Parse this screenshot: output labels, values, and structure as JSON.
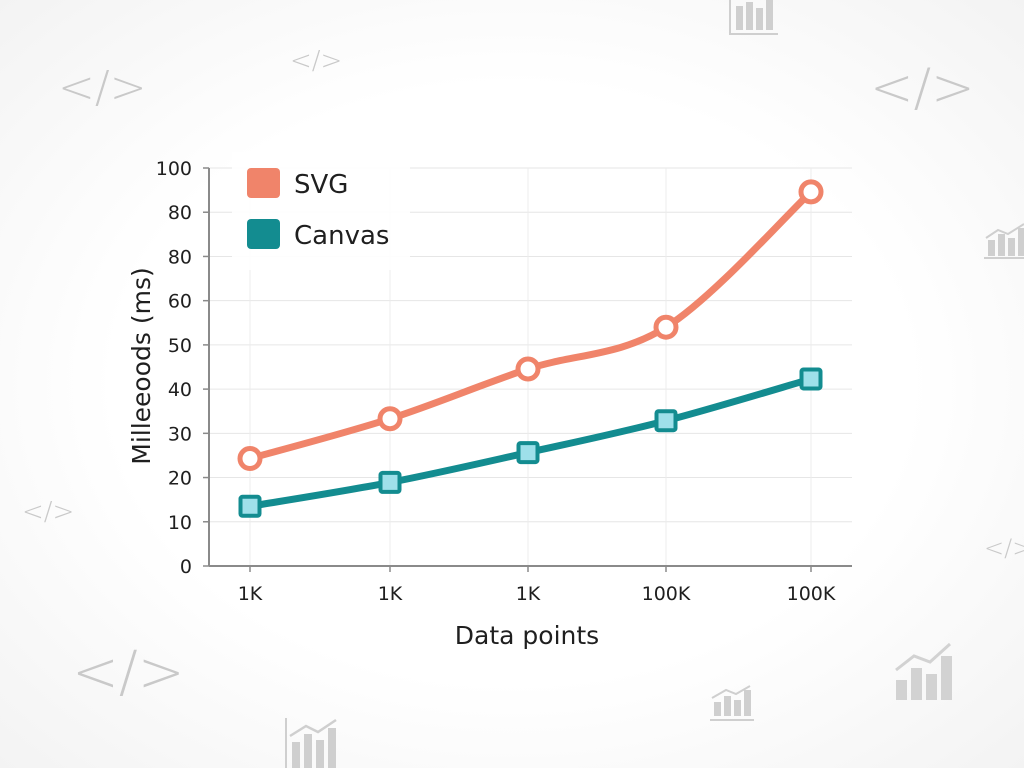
{
  "chart_data": {
    "type": "line",
    "title": "",
    "xlabel": "Data points",
    "ylabel": "Milleeoods (ms)",
    "categories": [
      "1K",
      "1K",
      "1K",
      "100K",
      "100K"
    ],
    "y_ticks": [
      "0",
      "10",
      "20",
      "30",
      "40",
      "50",
      "60",
      "80",
      "80",
      "100"
    ],
    "ylim": [
      0,
      100
    ],
    "grid": true,
    "legend_position": "top-left",
    "series": [
      {
        "name": "SVG",
        "color": "#F0846A",
        "marker": "circle",
        "values": [
          27,
          37,
          49.5,
          60,
          94
        ]
      },
      {
        "name": "Canvas",
        "color": "#138C90",
        "marker": "square",
        "values": [
          15,
          21,
          28.5,
          36.5,
          47
        ]
      }
    ]
  },
  "background_icons": [
    "code-icon",
    "code-icon",
    "code-icon",
    "code-icon",
    "code-icon",
    "code-icon",
    "bar-chart-icon",
    "bar-chart-icon",
    "bar-chart-icon",
    "bar-chart-icon",
    "bar-chart-icon"
  ]
}
